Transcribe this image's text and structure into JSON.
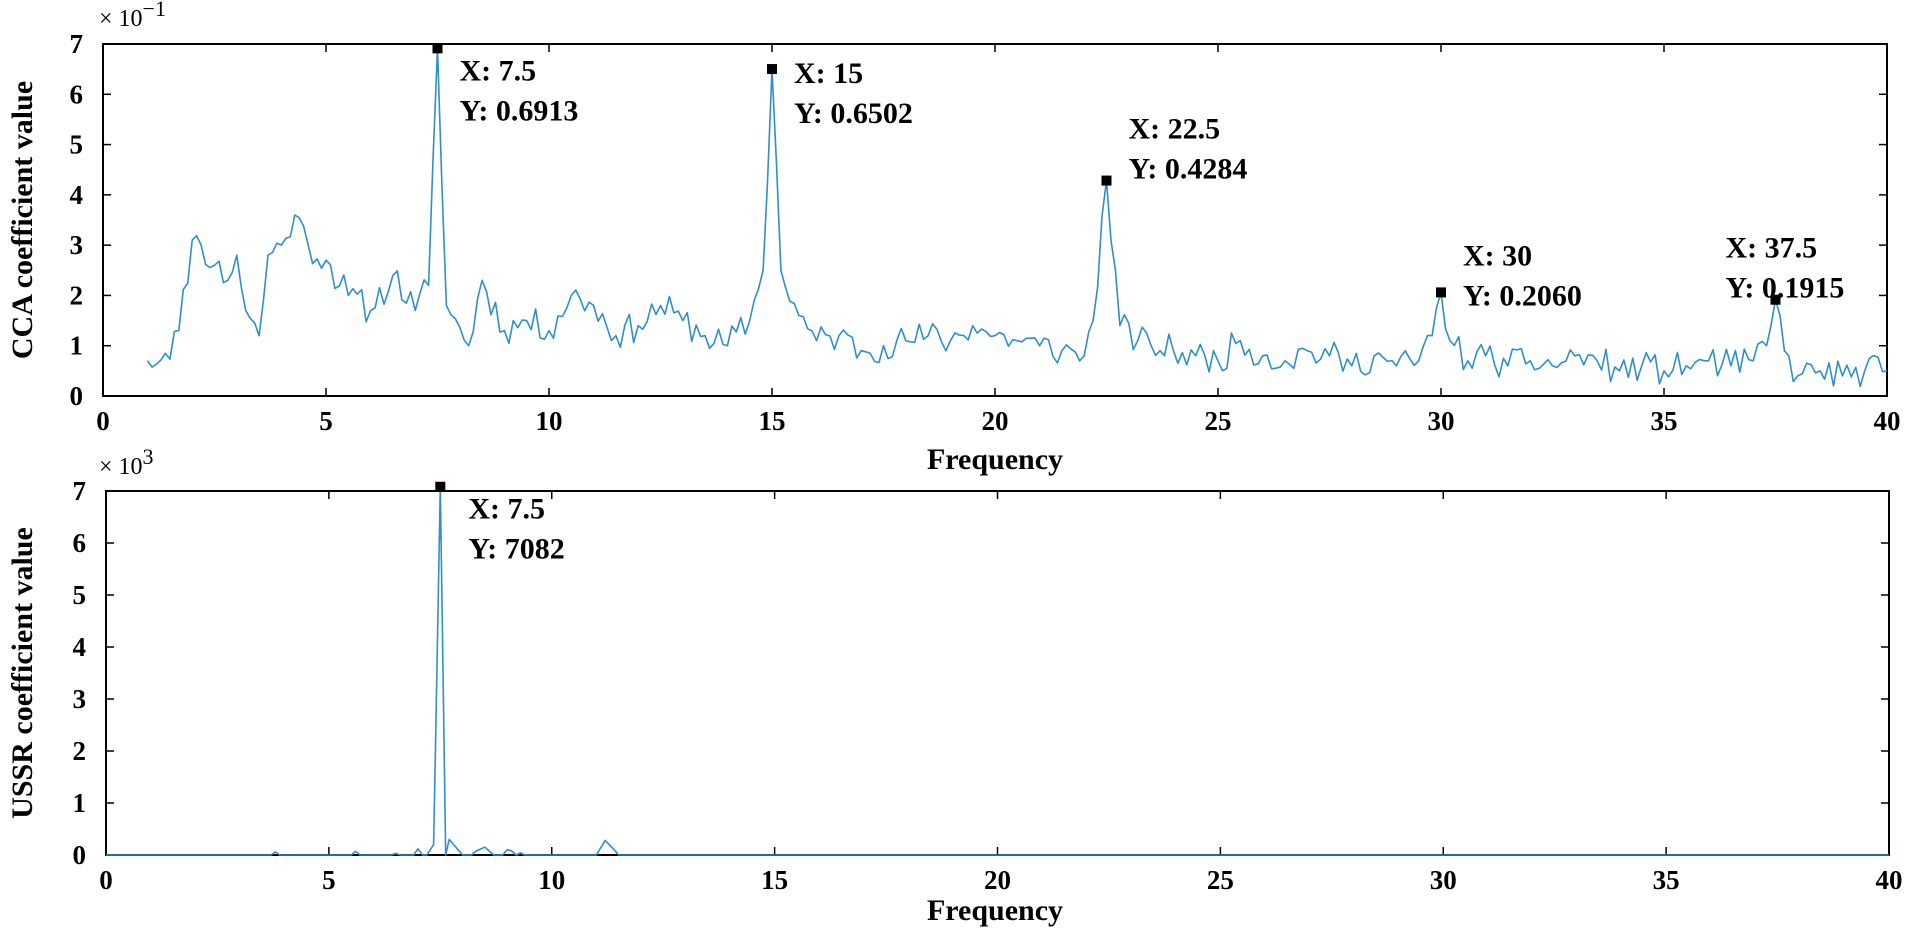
{
  "chart_data": [
    {
      "type": "line",
      "xlabel": "Frequency",
      "ylabel": "CCA coefficient value",
      "multiplier_label": "× 10",
      "multiplier_exponent": "−1",
      "xlim": [
        0,
        40
      ],
      "ylim": [
        0,
        0.7
      ],
      "xticks": [
        0,
        5,
        10,
        15,
        20,
        25,
        30,
        35,
        40
      ],
      "yticks": [
        0,
        0.1,
        0.2,
        0.3,
        0.4,
        0.5,
        0.6,
        0.7
      ],
      "yticklabels": [
        "0",
        "1",
        "2",
        "3",
        "4",
        "5",
        "6",
        "7"
      ],
      "grid": false,
      "line_color": "#2f8fcc",
      "key_points": [
        [
          1.0,
          0.07
        ],
        [
          1.4,
          0.085
        ],
        [
          1.7,
          0.13
        ],
        [
          2.0,
          0.31
        ],
        [
          2.2,
          0.3
        ],
        [
          2.5,
          0.26
        ],
        [
          2.8,
          0.23
        ],
        [
          3.0,
          0.28
        ],
        [
          3.2,
          0.17
        ],
        [
          3.5,
          0.12
        ],
        [
          3.7,
          0.28
        ],
        [
          4.0,
          0.3
        ],
        [
          4.3,
          0.36
        ],
        [
          4.6,
          0.3
        ],
        [
          5.0,
          0.27
        ],
        [
          5.5,
          0.2
        ],
        [
          6.0,
          0.17
        ],
        [
          6.5,
          0.24
        ],
        [
          7.0,
          0.17
        ],
        [
          7.3,
          0.22
        ],
        [
          7.5,
          0.6913
        ],
        [
          7.7,
          0.18
        ],
        [
          8.2,
          0.1
        ],
        [
          8.5,
          0.23
        ],
        [
          9.0,
          0.13
        ],
        [
          9.5,
          0.15
        ],
        [
          10.0,
          0.13
        ],
        [
          10.5,
          0.2
        ],
        [
          11.0,
          0.18
        ],
        [
          11.5,
          0.12
        ],
        [
          12.0,
          0.14
        ],
        [
          12.5,
          0.18
        ],
        [
          13.0,
          0.15
        ],
        [
          13.5,
          0.12
        ],
        [
          14.0,
          0.1
        ],
        [
          14.5,
          0.15
        ],
        [
          14.8,
          0.25
        ],
        [
          15.0,
          0.6502
        ],
        [
          15.2,
          0.25
        ],
        [
          15.6,
          0.16
        ],
        [
          16.0,
          0.11
        ],
        [
          16.5,
          0.12
        ],
        [
          17.0,
          0.09
        ],
        [
          17.5,
          0.1
        ],
        [
          18.0,
          0.11
        ],
        [
          18.5,
          0.12
        ],
        [
          19.0,
          0.11
        ],
        [
          19.5,
          0.14
        ],
        [
          20.0,
          0.12
        ],
        [
          20.5,
          0.11
        ],
        [
          21.0,
          0.1
        ],
        [
          21.5,
          0.09
        ],
        [
          22.0,
          0.08
        ],
        [
          22.2,
          0.15
        ],
        [
          22.5,
          0.4284
        ],
        [
          22.8,
          0.14
        ],
        [
          23.2,
          0.11
        ],
        [
          23.5,
          0.1
        ],
        [
          24.0,
          0.09
        ],
        [
          24.5,
          0.08
        ],
        [
          25.0,
          0.07
        ],
        [
          25.5,
          0.11
        ],
        [
          26.0,
          0.08
        ],
        [
          26.5,
          0.07
        ],
        [
          27.0,
          0.09
        ],
        [
          27.5,
          0.08
        ],
        [
          28.0,
          0.06
        ],
        [
          28.5,
          0.08
        ],
        [
          29.0,
          0.06
        ],
        [
          29.5,
          0.07
        ],
        [
          29.8,
          0.12
        ],
        [
          30.0,
          0.206
        ],
        [
          30.2,
          0.11
        ],
        [
          30.6,
          0.07
        ],
        [
          31.0,
          0.08
        ],
        [
          31.5,
          0.06
        ],
        [
          32.0,
          0.07
        ],
        [
          32.5,
          0.06
        ],
        [
          33.0,
          0.08
        ],
        [
          33.5,
          0.07
        ],
        [
          34.0,
          0.05
        ],
        [
          34.5,
          0.06
        ],
        [
          35.0,
          0.05
        ],
        [
          35.5,
          0.06
        ],
        [
          36.0,
          0.07
        ],
        [
          36.5,
          0.06
        ],
        [
          37.0,
          0.07
        ],
        [
          37.3,
          0.1
        ],
        [
          37.5,
          0.1915
        ],
        [
          37.7,
          0.09
        ],
        [
          38.0,
          0.04
        ],
        [
          38.5,
          0.05
        ],
        [
          39.0,
          0.04
        ],
        [
          39.5,
          0.05
        ],
        [
          40.0,
          0.05
        ]
      ],
      "annotations": [
        {
          "x": 7.5,
          "y": 0.6913,
          "x_text": "X: 7.5",
          "y_text": "Y: 0.6913"
        },
        {
          "x": 15,
          "y": 0.6502,
          "x_text": "X: 15",
          "y_text": "Y: 0.6502"
        },
        {
          "x": 22.5,
          "y": 0.4284,
          "x_text": "X: 22.5",
          "y_text": "Y: 0.4284"
        },
        {
          "x": 30,
          "y": 0.206,
          "x_text": "X: 30",
          "y_text": "Y: 0.2060"
        },
        {
          "x": 37.5,
          "y": 0.1915,
          "x_text": "X: 37.5",
          "y_text": "Y: 0.1915"
        }
      ]
    },
    {
      "type": "line",
      "xlabel": "Frequency",
      "ylabel": "USSR coefficient value",
      "multiplier_label": "× 10",
      "multiplier_exponent": "3",
      "xlim": [
        0,
        40
      ],
      "ylim": [
        0,
        7000
      ],
      "xticks": [
        0,
        5,
        10,
        15,
        20,
        25,
        30,
        35,
        40
      ],
      "yticks": [
        0,
        1000,
        2000,
        3000,
        4000,
        5000,
        6000,
        7000
      ],
      "yticklabels": [
        "0",
        "1",
        "2",
        "3",
        "4",
        "5",
        "6",
        "7"
      ],
      "grid": false,
      "line_color": "#2f8fcc",
      "key_points": [
        [
          0.0,
          0
        ],
        [
          3.7,
          0
        ],
        [
          3.8,
          60
        ],
        [
          4.0,
          0
        ],
        [
          5.4,
          0
        ],
        [
          5.6,
          70
        ],
        [
          5.8,
          0
        ],
        [
          6.5,
          30
        ],
        [
          6.8,
          0
        ],
        [
          7.0,
          120
        ],
        [
          7.2,
          0
        ],
        [
          7.35,
          200
        ],
        [
          7.5,
          7082
        ],
        [
          7.62,
          0
        ],
        [
          7.7,
          300
        ],
        [
          7.9,
          100
        ],
        [
          8.1,
          0
        ],
        [
          8.5,
          150
        ],
        [
          8.7,
          0
        ],
        [
          9.0,
          100
        ],
        [
          9.3,
          40
        ],
        [
          9.5,
          0
        ],
        [
          11.0,
          0
        ],
        [
          11.2,
          280
        ],
        [
          11.4,
          100
        ],
        [
          11.6,
          0
        ],
        [
          40.0,
          0
        ]
      ],
      "annotations": [
        {
          "x": 7.5,
          "y": 7082,
          "x_text": "X: 7.5",
          "y_text": "Y: 7082"
        }
      ]
    }
  ]
}
